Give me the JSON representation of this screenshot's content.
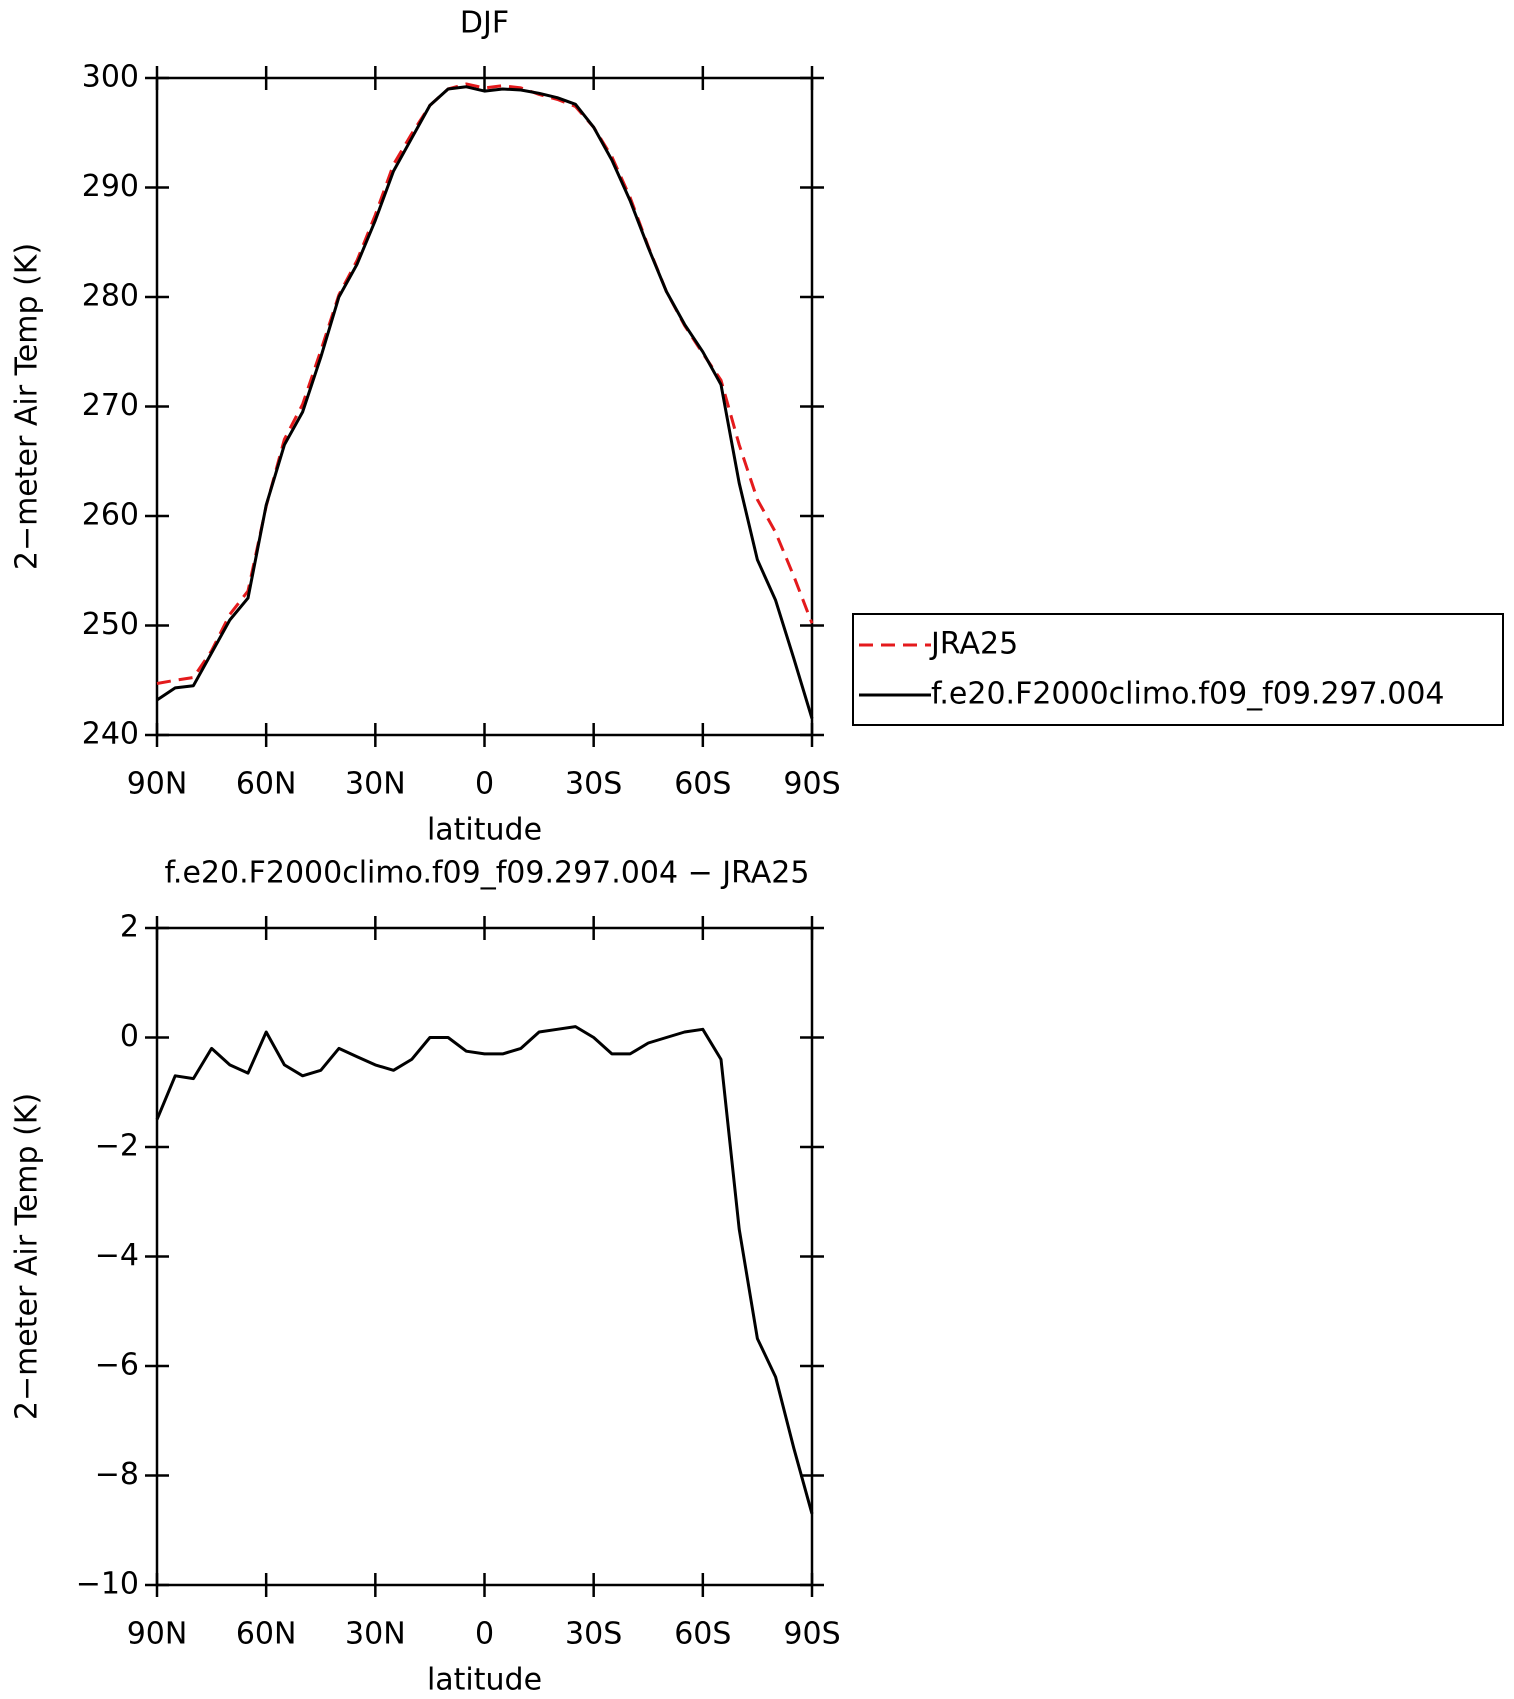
{
  "chart_data": [
    {
      "type": "line",
      "title": "DJF",
      "xlabel": "latitude",
      "ylabel": "2−meter Air Temp (K)",
      "x": [
        90,
        85,
        80,
        75,
        70,
        65,
        60,
        55,
        50,
        45,
        40,
        35,
        30,
        25,
        20,
        15,
        10,
        5,
        0,
        -5,
        -10,
        -15,
        -20,
        -25,
        -30,
        -35,
        -40,
        -45,
        -50,
        -55,
        -60,
        -65,
        -70,
        -75,
        -80,
        -85,
        -90
      ],
      "xlim": [
        90,
        -90
      ],
      "xticks": [
        {
          "value": 90,
          "label": "90N"
        },
        {
          "value": 60,
          "label": "60N"
        },
        {
          "value": 30,
          "label": "30N"
        },
        0,
        {
          "value": -30,
          "label": "30S"
        },
        {
          "value": -60,
          "label": "60S"
        },
        {
          "value": -90,
          "label": "90S"
        }
      ],
      "ylim": [
        240,
        300
      ],
      "yticks": [
        240,
        250,
        260,
        270,
        280,
        290,
        300
      ],
      "series": [
        {
          "name": "JRA25",
          "color": "#e41a1c",
          "dashed": true,
          "values": [
            244.7,
            245.0,
            245.25,
            247.7,
            251.0,
            253.15,
            260.9,
            267.0,
            270.2,
            275.1,
            280.2,
            283.35,
            287.5,
            292.1,
            294.9,
            297.5,
            299.0,
            299.45,
            299.1,
            299.3,
            299.1,
            298.5,
            298.05,
            297.4,
            295.5,
            292.8,
            289.1,
            284.6,
            280.5,
            277.4,
            274.85,
            272.4,
            266.5,
            261.5,
            258.5,
            254.5,
            250.2
          ]
        },
        {
          "name": "f.e20.F2000climo.f09_f09.297.004",
          "color": "#000000",
          "dashed": false,
          "values": [
            243.2,
            244.3,
            244.5,
            247.5,
            250.5,
            252.5,
            261.0,
            266.5,
            269.5,
            274.5,
            280.0,
            283.0,
            287.0,
            291.5,
            294.5,
            297.5,
            299.0,
            299.2,
            298.8,
            299.0,
            298.9,
            298.6,
            298.2,
            297.6,
            295.5,
            292.5,
            288.8,
            284.5,
            280.5,
            277.5,
            275.0,
            272.0,
            263.0,
            256.0,
            252.3,
            247.0,
            241.5
          ]
        }
      ]
    },
    {
      "type": "line",
      "title": "f.e20.F2000climo.f09_f09.297.004 − JRA25",
      "xlabel": "latitude",
      "ylabel": "2−meter Air Temp (K)",
      "x": [
        90,
        85,
        80,
        75,
        70,
        65,
        60,
        55,
        50,
        45,
        40,
        35,
        30,
        25,
        20,
        15,
        10,
        5,
        0,
        -5,
        -10,
        -15,
        -20,
        -25,
        -30,
        -35,
        -40,
        -45,
        -50,
        -55,
        -60,
        -65,
        -70,
        -75,
        -80,
        -85,
        -90
      ],
      "xlim": [
        90,
        -90
      ],
      "xticks": [
        {
          "value": 90,
          "label": "90N"
        },
        {
          "value": 60,
          "label": "60N"
        },
        {
          "value": 30,
          "label": "30N"
        },
        0,
        {
          "value": -30,
          "label": "30S"
        },
        {
          "value": -60,
          "label": "60S"
        },
        {
          "value": -90,
          "label": "90S"
        }
      ],
      "ylim": [
        -10,
        2
      ],
      "yticks": [
        {
          "value": -10,
          "label": "−10"
        },
        {
          "value": -8,
          "label": "−8"
        },
        {
          "value": -6,
          "label": "−6"
        },
        {
          "value": -4,
          "label": "−4"
        },
        {
          "value": -2,
          "label": "−2"
        },
        0,
        2
      ],
      "series": [
        {
          "color": "#000000",
          "dashed": false,
          "values": [
            -1.5,
            -0.7,
            -0.75,
            -0.2,
            -0.5,
            -0.65,
            0.1,
            -0.5,
            -0.7,
            -0.6,
            -0.2,
            -0.35,
            -0.5,
            -0.6,
            -0.4,
            0.0,
            0.0,
            -0.25,
            -0.3,
            -0.3,
            -0.2,
            0.1,
            0.15,
            0.2,
            0.0,
            -0.3,
            -0.3,
            -0.1,
            0.0,
            0.1,
            0.15,
            -0.4,
            -3.5,
            -5.5,
            -6.2,
            -7.5,
            -8.7
          ]
        }
      ]
    }
  ]
}
